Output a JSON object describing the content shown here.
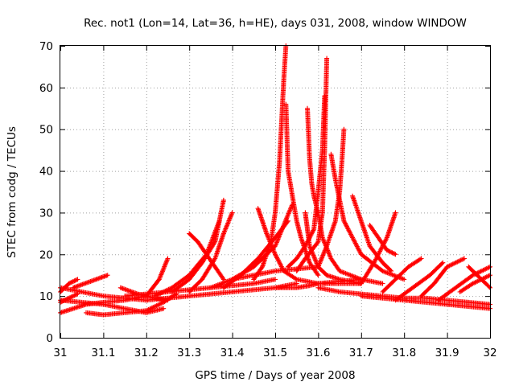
{
  "chart_data": {
    "type": "scatter",
    "title": "Rec. not1 (Lon=14, Lat=36, h=HE), days 031, 2008, window WINDOW",
    "xlabel": "GPS time / Days of year 2008",
    "ylabel": "STEC from codg / TECUs",
    "xlim": [
      31,
      32
    ],
    "ylim": [
      0,
      70
    ],
    "x_ticks": [
      "31",
      "31.1",
      "31.2",
      "31.3",
      "31.4",
      "31.5",
      "31.6",
      "31.7",
      "31.8",
      "31.9",
      "32"
    ],
    "y_ticks": [
      "0",
      "10",
      "20",
      "30",
      "40",
      "50",
      "60",
      "70"
    ],
    "grid": true,
    "marker": "plus",
    "color": "#ff0000",
    "series": [
      {
        "x": [
          31.0,
          31.03,
          31.06,
          31.1,
          31.15,
          31.2,
          31.23,
          31.25
        ],
        "y": [
          6,
          7,
          8,
          8.5,
          9,
          10,
          14,
          19
        ]
      },
      {
        "x": [
          31.0,
          31.05,
          31.1,
          31.15,
          31.2,
          31.24
        ],
        "y": [
          9,
          8.5,
          8,
          7,
          6,
          7
        ]
      },
      {
        "x": [
          31.0,
          31.02,
          31.04
        ],
        "y": [
          11,
          13,
          14
        ]
      },
      {
        "x": [
          31.0,
          31.02,
          31.04
        ],
        "y": [
          8.5,
          9.5,
          10.5
        ]
      },
      {
        "x": [
          31.0,
          31.05,
          31.1,
          31.15,
          31.2
        ],
        "y": [
          12,
          11,
          10,
          9.5,
          9
        ]
      },
      {
        "x": [
          31.03,
          31.07,
          31.11
        ],
        "y": [
          12,
          13.5,
          15
        ]
      },
      {
        "x": [
          31.06,
          31.1,
          31.15,
          31.2,
          31.24,
          31.27
        ],
        "y": [
          6,
          5.5,
          6,
          6.5,
          8.5,
          10.5
        ]
      },
      {
        "x": [
          31.14,
          31.18,
          31.22,
          31.25
        ],
        "y": [
          12,
          10.5,
          9.5,
          9
        ]
      },
      {
        "x": [
          31.15,
          31.2,
          31.25,
          31.3,
          31.35,
          31.4,
          31.45,
          31.5
        ],
        "y": [
          10,
          10.5,
          11,
          11.5,
          12,
          12.5,
          13,
          14
        ]
      },
      {
        "x": [
          31.2,
          31.25,
          31.3,
          31.35,
          31.4,
          31.45,
          31.5,
          31.55
        ],
        "y": [
          9,
          9.5,
          10,
          10.5,
          11,
          11.5,
          12,
          13
        ]
      },
      {
        "x": [
          31.22,
          31.26,
          31.3,
          31.34,
          31.37
        ],
        "y": [
          10,
          12,
          15,
          20,
          28
        ]
      },
      {
        "x": [
          31.26,
          31.3,
          31.33,
          31.36,
          31.38
        ],
        "y": [
          11,
          14,
          18,
          23,
          33
        ]
      },
      {
        "x": [
          31.3,
          31.32,
          31.34,
          31.36,
          31.38
        ],
        "y": [
          25,
          23,
          20,
          17,
          14
        ]
      },
      {
        "x": [
          31.3,
          31.33,
          31.36,
          31.38,
          31.4
        ],
        "y": [
          11,
          14,
          19,
          25,
          30
        ]
      },
      {
        "x": [
          31.35,
          31.4,
          31.45,
          31.5,
          31.54
        ],
        "y": [
          12,
          14,
          17,
          22,
          32
        ]
      },
      {
        "x": [
          31.38,
          31.42,
          31.46,
          31.5,
          31.53
        ],
        "y": [
          12,
          15,
          19,
          24,
          28
        ]
      },
      {
        "x": [
          31.4,
          31.45,
          31.5,
          31.55,
          31.6
        ],
        "y": [
          14,
          15,
          16,
          16.5,
          17
        ]
      },
      {
        "x": [
          31.46,
          31.47,
          31.48,
          31.5,
          31.52,
          31.55,
          31.6,
          31.65,
          31.7
        ],
        "y": [
          31,
          28,
          25,
          20,
          16,
          14,
          13,
          13,
          13
        ]
      },
      {
        "x": [
          31.45,
          31.47,
          31.49,
          31.5,
          31.51,
          31.515,
          31.52,
          31.525
        ],
        "y": [
          14,
          17,
          23,
          30,
          42,
          52,
          62,
          70
        ]
      },
      {
        "x": [
          31.5,
          31.53,
          31.55,
          31.58,
          31.6,
          31.65,
          31.7
        ],
        "y": [
          12,
          12,
          12,
          12.5,
          13,
          13.5,
          14
        ]
      },
      {
        "x": [
          31.525,
          31.53,
          31.54,
          31.55,
          31.56,
          31.57,
          31.58,
          31.6
        ],
        "y": [
          56,
          40,
          34,
          28,
          24,
          21,
          18,
          15
        ]
      },
      {
        "x": [
          31.53,
          31.55,
          31.57,
          31.59,
          31.6,
          31.61,
          31.615
        ],
        "y": [
          17,
          19,
          22,
          26,
          35,
          45,
          58
        ]
      },
      {
        "x": [
          31.57,
          31.575,
          31.58,
          31.6,
          31.62,
          31.65,
          31.7
        ],
        "y": [
          30,
          26,
          22,
          17,
          15,
          14,
          13
        ]
      },
      {
        "x": [
          31.575,
          31.58,
          31.585,
          31.59,
          31.6
        ],
        "y": [
          55,
          43,
          37,
          34,
          30
        ]
      },
      {
        "x": [
          31.55,
          31.57,
          31.6,
          31.61,
          31.615,
          31.62
        ],
        "y": [
          16,
          19,
          23,
          30,
          45,
          67
        ]
      },
      {
        "x": [
          31.6,
          31.61,
          31.63,
          31.65,
          31.7,
          31.75
        ],
        "y": [
          30,
          24,
          19,
          16,
          14,
          13
        ]
      },
      {
        "x": [
          31.6,
          31.62,
          31.64,
          31.65,
          31.655,
          31.66
        ],
        "y": [
          17,
          22,
          28,
          35,
          42,
          50
        ]
      },
      {
        "x": [
          31.63,
          31.64,
          31.66,
          31.7,
          31.75,
          31.8
        ],
        "y": [
          44,
          38,
          28,
          20,
          16,
          14
        ]
      },
      {
        "x": [
          31.68,
          31.7,
          31.72,
          31.75,
          31.77
        ],
        "y": [
          34,
          28,
          22,
          18,
          16
        ]
      },
      {
        "x": [
          31.7,
          31.73,
          31.76,
          31.78
        ],
        "y": [
          13,
          18,
          24,
          30
        ]
      },
      {
        "x": [
          31.72,
          31.74,
          31.76,
          31.78
        ],
        "y": [
          27,
          24,
          21,
          20
        ]
      },
      {
        "x": [
          31.6,
          31.65,
          31.7,
          31.75,
          31.8,
          31.85,
          31.9,
          31.95,
          32.0
        ],
        "y": [
          12,
          11,
          10.5,
          10,
          9.5,
          9.5,
          9,
          8.5,
          8
        ]
      },
      {
        "x": [
          31.7,
          31.75,
          31.8,
          31.85,
          31.9,
          31.95,
          32.0
        ],
        "y": [
          10,
          9.5,
          9,
          8.5,
          8,
          7.5,
          7
        ]
      },
      {
        "x": [
          31.75,
          31.78,
          31.81,
          31.84
        ],
        "y": [
          11,
          14,
          17,
          19
        ]
      },
      {
        "x": [
          31.78,
          31.82,
          31.86,
          31.89
        ],
        "y": [
          9,
          12,
          15,
          18
        ]
      },
      {
        "x": [
          31.84,
          31.87,
          31.9,
          31.94
        ],
        "y": [
          10,
          13,
          17,
          19
        ]
      },
      {
        "x": [
          31.88,
          31.92,
          31.96,
          32.0
        ],
        "y": [
          9,
          12,
          15,
          17
        ]
      },
      {
        "x": [
          31.93,
          31.96,
          32.0
        ],
        "y": [
          11,
          13,
          15
        ]
      },
      {
        "x": [
          31.95,
          31.97,
          32.0
        ],
        "y": [
          17,
          15,
          12
        ]
      }
    ]
  }
}
